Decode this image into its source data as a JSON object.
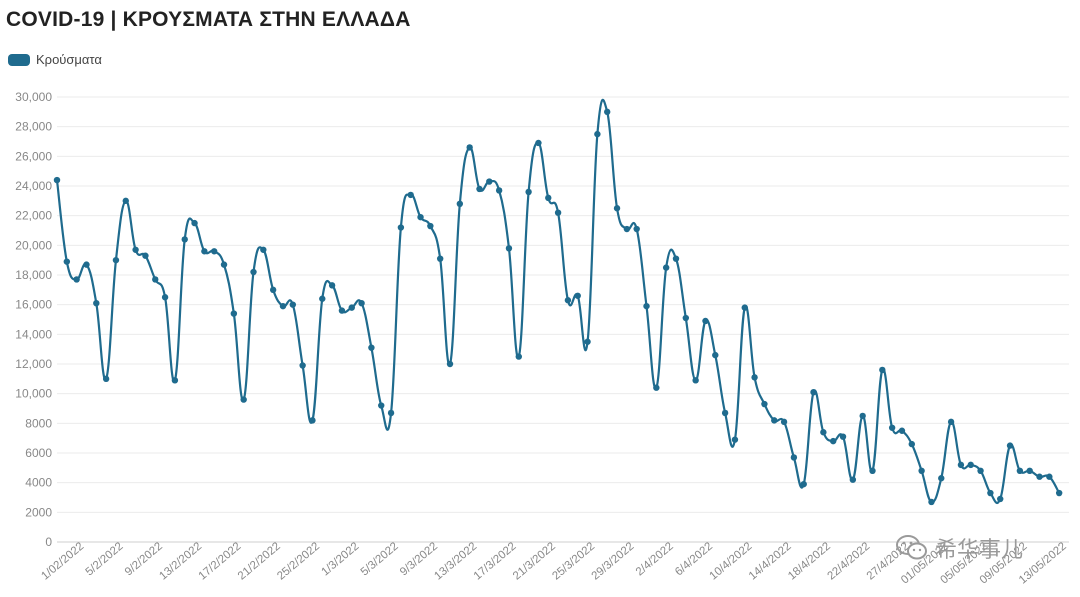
{
  "title": "COVID-19 | ΚΡΟΥΣΜΑΤΑ ΣΤΗΝ ΕΛΛΑΔΑ",
  "legend": {
    "label": "Κρούσματα",
    "color": "#1f6b8e"
  },
  "watermark": {
    "text": "希华事儿",
    "icon": "wechat-icon"
  },
  "chart_data": {
    "type": "line",
    "title": "COVID-19 | ΚΡΟΥΣΜΑΤΑ ΣΤΗΝ ΕΛΛΑΔΑ",
    "legend_position": "top-left",
    "grid": true,
    "ylim": [
      0,
      30000
    ],
    "yticks": [
      0,
      2000,
      4000,
      6000,
      8000,
      10000,
      12000,
      14000,
      16000,
      18000,
      20000,
      22000,
      24000,
      26000,
      28000,
      30000
    ],
    "ytick_labels": [
      "0",
      "2000",
      "4000",
      "6000",
      "8000",
      "10,000",
      "12,000",
      "14,000",
      "16,000",
      "18,000",
      "20,000",
      "22,000",
      "24,000",
      "26,000",
      "28,000",
      "30,000"
    ],
    "xlim": [
      0,
      103
    ],
    "xticks": [
      {
        "x": 0,
        "label": "1/02/2022"
      },
      {
        "x": 4,
        "label": "5/2/2022"
      },
      {
        "x": 8,
        "label": "9/2/2022"
      },
      {
        "x": 12,
        "label": "13/2/2022"
      },
      {
        "x": 16,
        "label": "17/2/2022"
      },
      {
        "x": 20,
        "label": "21/2/2022"
      },
      {
        "x": 24,
        "label": "25/2/2022"
      },
      {
        "x": 28,
        "label": "1/3/2022"
      },
      {
        "x": 32,
        "label": "5/3/2022"
      },
      {
        "x": 36,
        "label": "9/3/2022"
      },
      {
        "x": 40,
        "label": "13/3/2022"
      },
      {
        "x": 44,
        "label": "17/3/2022"
      },
      {
        "x": 48,
        "label": "21/3/2022"
      },
      {
        "x": 52,
        "label": "25/3/2022"
      },
      {
        "x": 56,
        "label": "29/3/2022"
      },
      {
        "x": 60,
        "label": "2/4/2022"
      },
      {
        "x": 64,
        "label": "6/4/2022"
      },
      {
        "x": 68,
        "label": "10/4/2022"
      },
      {
        "x": 72,
        "label": "14/4/2022"
      },
      {
        "x": 76,
        "label": "18/4/2022"
      },
      {
        "x": 80,
        "label": "22/4/2022"
      },
      {
        "x": 84,
        "label": "27/4/2022"
      },
      {
        "x": 88,
        "label": "01/05/2022"
      },
      {
        "x": 92,
        "label": "05/05/2022"
      },
      {
        "x": 96,
        "label": "09/05/2022"
      },
      {
        "x": 100,
        "label": "13/05/2022"
      }
    ],
    "series": [
      {
        "name": "Κρούσματα",
        "color": "#1f6b8e",
        "values": [
          24400,
          18900,
          17700,
          18700,
          16100,
          11000,
          19000,
          23000,
          19700,
          19300,
          17700,
          16500,
          10900,
          20400,
          21500,
          19600,
          19600,
          18700,
          15400,
          9600,
          18200,
          19700,
          17000,
          15900,
          16000,
          11900,
          8200,
          16400,
          17300,
          15600,
          15800,
          16100,
          13100,
          9200,
          8700,
          21200,
          23400,
          21900,
          21300,
          19100,
          12000,
          22800,
          26600,
          23800,
          24300,
          23700,
          19800,
          12500,
          23600,
          26900,
          23200,
          22200,
          16300,
          16600,
          13500,
          27500,
          29000,
          22500,
          21100,
          21100,
          15900,
          10400,
          18500,
          19100,
          15100,
          10900,
          14900,
          12600,
          8700,
          6900,
          15800,
          11100,
          9300,
          8200,
          8100,
          5700,
          3900,
          10100,
          7400,
          6800,
          7100,
          4200,
          8500,
          4800,
          11600,
          7700,
          7500,
          6600,
          4800,
          2700,
          4300,
          8100,
          5200,
          5200,
          4800,
          3300,
          2900,
          6500,
          4800,
          4800,
          4400,
          4400,
          3300
        ]
      }
    ]
  }
}
